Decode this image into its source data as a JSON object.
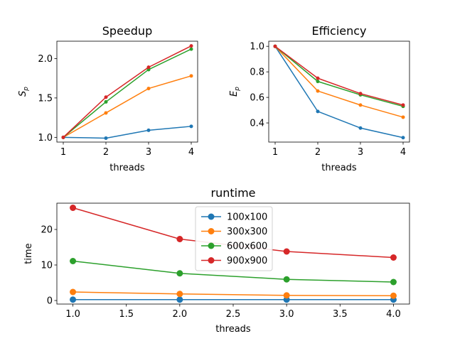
{
  "chart_data": [
    {
      "type": "line",
      "title": "Speedup",
      "xlabel": "threads",
      "ylabel": "S_p",
      "x": [
        1,
        2,
        3,
        4
      ],
      "xticks": [
        "1",
        "2",
        "3",
        "4"
      ],
      "yticks": [
        "1.0",
        "1.5",
        "2.0"
      ],
      "ylim": [
        0.94,
        2.22
      ],
      "xlim": [
        0.85,
        4.15
      ],
      "grid": false,
      "series": [
        {
          "name": "100x100",
          "color": "#1f77b4",
          "values": [
            1.0,
            0.99,
            1.09,
            1.14
          ]
        },
        {
          "name": "300x300",
          "color": "#ff7f0e",
          "values": [
            1.0,
            1.31,
            1.62,
            1.78
          ]
        },
        {
          "name": "600x600",
          "color": "#2ca02c",
          "values": [
            1.0,
            1.45,
            1.86,
            2.12
          ]
        },
        {
          "name": "900x900",
          "color": "#d62728",
          "values": [
            1.0,
            1.51,
            1.89,
            2.16
          ]
        }
      ]
    },
    {
      "type": "line",
      "title": "Efficiency",
      "xlabel": "threads",
      "ylabel": "E_p",
      "x": [
        1,
        2,
        3,
        4
      ],
      "xticks": [
        "1",
        "2",
        "3",
        "4"
      ],
      "yticks": [
        "0.4",
        "0.6",
        "0.8",
        "1.0"
      ],
      "ylim": [
        0.25,
        1.04
      ],
      "xlim": [
        0.85,
        4.15
      ],
      "grid": false,
      "series": [
        {
          "name": "100x100",
          "color": "#1f77b4",
          "values": [
            1.0,
            0.49,
            0.36,
            0.285
          ]
        },
        {
          "name": "300x300",
          "color": "#ff7f0e",
          "values": [
            1.0,
            0.65,
            0.54,
            0.445
          ]
        },
        {
          "name": "600x600",
          "color": "#2ca02c",
          "values": [
            1.0,
            0.725,
            0.62,
            0.53
          ]
        },
        {
          "name": "900x900",
          "color": "#d62728",
          "values": [
            1.0,
            0.75,
            0.63,
            0.54
          ]
        }
      ]
    },
    {
      "type": "line",
      "title": "runtime",
      "xlabel": "threads",
      "ylabel": "time",
      "x": [
        1,
        2,
        3,
        4
      ],
      "xticks": [
        "1.0",
        "1.5",
        "2.0",
        "2.5",
        "3.0",
        "3.5",
        "4.0"
      ],
      "yticks": [
        "0",
        "10",
        "20"
      ],
      "ylim": [
        -1.0,
        27.4
      ],
      "xlim": [
        0.85,
        4.15
      ],
      "grid": false,
      "legend": "upper-center",
      "series": [
        {
          "name": "100x100",
          "color": "#1f77b4",
          "values": [
            0.25,
            0.25,
            0.25,
            0.25
          ]
        },
        {
          "name": "300x300",
          "color": "#ff7f0e",
          "values": [
            2.4,
            1.85,
            1.45,
            1.35
          ]
        },
        {
          "name": "600x600",
          "color": "#2ca02c",
          "values": [
            11.1,
            7.65,
            5.95,
            5.2
          ]
        },
        {
          "name": "900x900",
          "color": "#d62728",
          "values": [
            26.1,
            17.3,
            13.8,
            12.1
          ]
        }
      ]
    }
  ]
}
